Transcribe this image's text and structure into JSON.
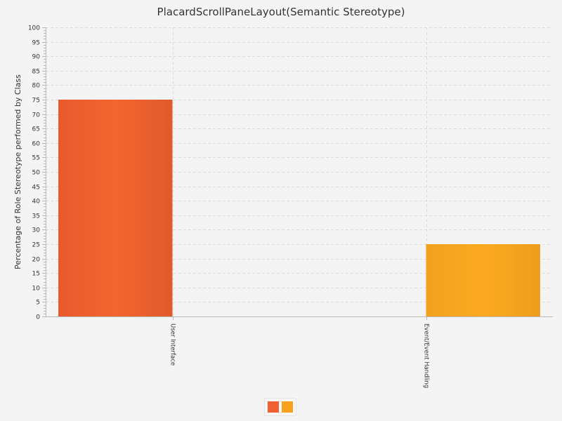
{
  "chart_data": {
    "type": "bar",
    "title": "PlacardScrollPaneLayout(Semantic Stereotype)",
    "xlabel": "",
    "ylabel": "Percentage of Role Stereotype performed by Class",
    "categories": [
      "User Interface",
      "Event/Event Handling"
    ],
    "series": [
      {
        "values": [
          75,
          0
        ],
        "color": "#f06030"
      },
      {
        "values": [
          0,
          25
        ],
        "color": "#f9a11d"
      }
    ],
    "ylim": [
      0,
      100
    ],
    "y_major_step": 5,
    "grid": true,
    "legend": "bottom-center"
  }
}
